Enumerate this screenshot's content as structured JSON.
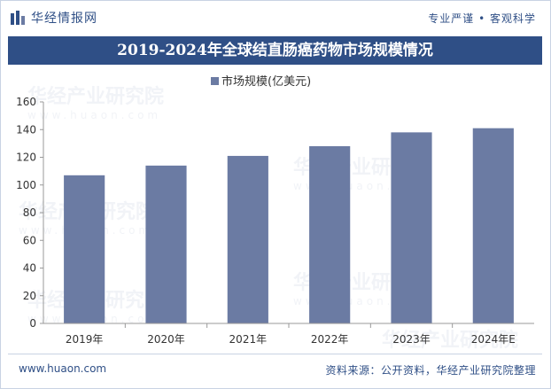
{
  "header": {
    "brand": "华经情报网",
    "tagline": "专业严谨 • 客观科学",
    "title": "2019-2024年全球结直肠癌药物市场规模情况"
  },
  "footer": {
    "website": "www.huaon.com",
    "source": "资料来源：公开资料，华经产业研究院整理"
  },
  "watermark": {
    "text": "华经产业研究院",
    "domain": "www.huaon.com"
  },
  "colors": {
    "bar": "#6b7ba3",
    "brand": "#2f4f86"
  },
  "chart_data": {
    "type": "bar",
    "title": "2019-2024年全球结直肠癌药物市场规模情况",
    "categories": [
      "2019年",
      "2020年",
      "2021年",
      "2022年",
      "2023年",
      "2024年E"
    ],
    "series": [
      {
        "name": "市场规模(亿美元)",
        "values": [
          107,
          114,
          121,
          128,
          138,
          141
        ]
      }
    ],
    "ylim": [
      0,
      160
    ],
    "yticks": [
      0,
      20,
      40,
      60,
      80,
      100,
      120,
      140,
      160
    ],
    "xlabel": "",
    "ylabel": "",
    "grid": false,
    "legend": "top-center"
  }
}
